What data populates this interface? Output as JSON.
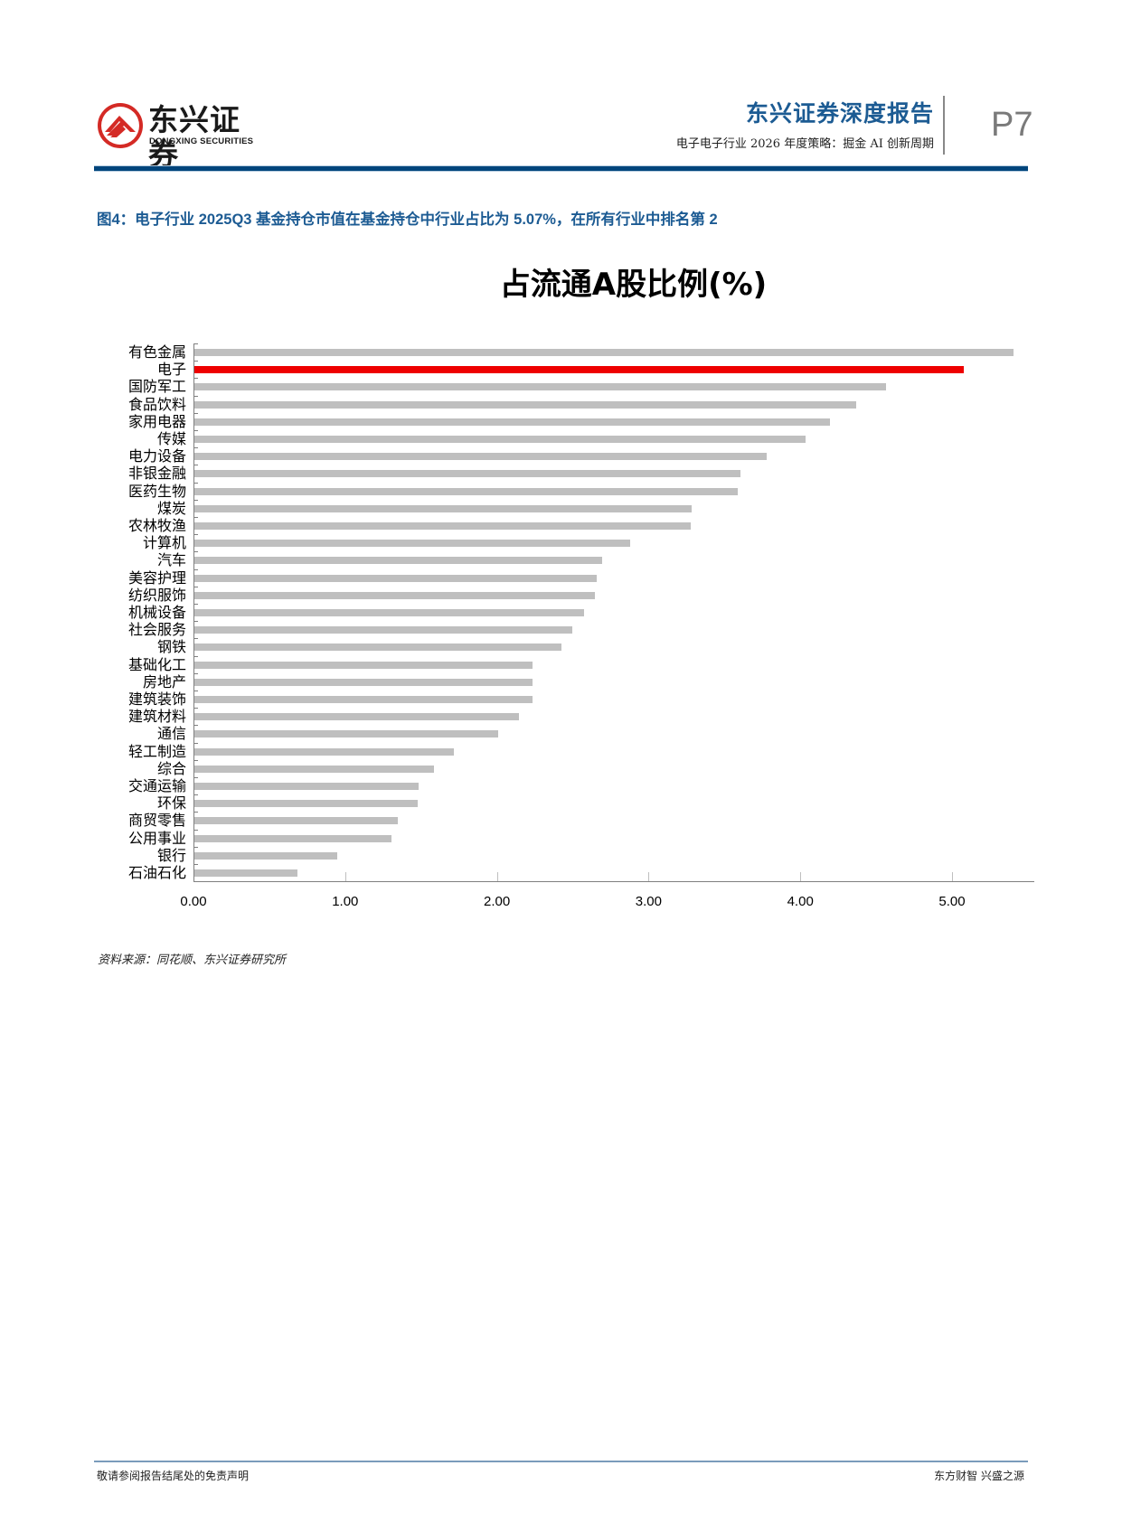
{
  "header": {
    "logo_cn": "东兴证券",
    "logo_en": "DONGXING SECURITIES",
    "report_type": "东兴证券深度报告",
    "report_subtitle": "电子电子行业 2026 年度策略：掘金 AI 创新周期",
    "page_number": "P7"
  },
  "figure": {
    "caption": "图4：电子行业 2025Q3 基金持仓市值在基金持仓中行业占比为 5.07%，在所有行业中排名第 2",
    "source": "资料来源：同花顺、东兴证券研究所"
  },
  "colors": {
    "brand_blue": "#1c5b93",
    "rule_blue": "#00457c",
    "bar_default": "#bfbfbf",
    "bar_highlight": "#ee0000"
  },
  "chart_data": {
    "type": "bar",
    "orientation": "horizontal",
    "title": "占流通A股比例(%)",
    "xlabel": "",
    "ylabel": "",
    "xlim": [
      0,
      5.5
    ],
    "x_ticks": [
      "0.00",
      "1.00",
      "2.00",
      "3.00",
      "4.00",
      "5.00"
    ],
    "grid": false,
    "legend": null,
    "highlight_category": "电子",
    "categories": [
      "有色金属",
      "电子",
      "国防军工",
      "食品饮料",
      "家用电器",
      "传媒",
      "电力设备",
      "非银金融",
      "医药生物",
      "煤炭",
      "农林牧渔",
      "计算机",
      "汽车",
      "美容护理",
      "纺织服饰",
      "机械设备",
      "社会服务",
      "钢铁",
      "基础化工",
      "房地产",
      "建筑装饰",
      "建筑材料",
      "通信",
      "轻工制造",
      "综合",
      "交通运输",
      "环保",
      "商贸零售",
      "公用事业",
      "银行",
      "石油石化"
    ],
    "values": [
      5.4,
      5.07,
      4.56,
      4.36,
      4.19,
      4.03,
      3.77,
      3.6,
      3.58,
      3.28,
      3.27,
      2.87,
      2.69,
      2.65,
      2.64,
      2.57,
      2.49,
      2.42,
      2.23,
      2.23,
      2.23,
      2.14,
      2.0,
      1.71,
      1.58,
      1.48,
      1.47,
      1.34,
      1.3,
      0.94,
      0.68
    ]
  },
  "footer": {
    "disclaimer": "敬请参阅报告结尾处的免责声明",
    "slogan": "东方财智 兴盛之源"
  }
}
